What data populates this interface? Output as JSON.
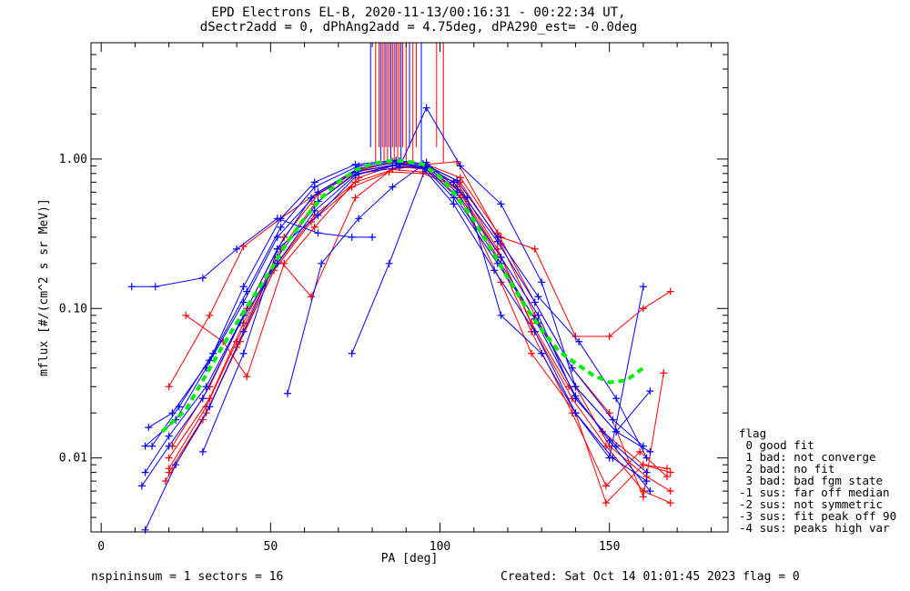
{
  "title_line1": "EPD Electrons EL-B, 2020-11-13/00:16:31 - 00:22:34 UT,",
  "title_line2": "dSectr2add = 0, dPhAng2add = 4.75deg, dPA290_est=  -0.0deg",
  "footer_left": "nspininsum =  1  sectors = 16",
  "footer_right": "Created: Sat Oct 14 01:01:45 2023   flag = 0",
  "legend": {
    "title": "flag",
    "items": [
      " 0 good fit",
      " 1 bad: not converge",
      " 2 bad: no fit",
      " 3 bad: bad fgm state",
      "-1 sus: far off median",
      "-2 sus: not symmetric",
      "-3 sus: fit peak off 90",
      "-4 sus: peaks high var"
    ]
  },
  "colors": {
    "blue": "#0000ff",
    "red": "#ff0000",
    "fit": "#00ee00"
  },
  "chart_data": {
    "type": "line",
    "xlabel": "PA [deg]",
    "ylabel": "mflux [#/(cm^2 s sr MeV)]",
    "xlim": [
      -3,
      185
    ],
    "ylim": [
      0.0032,
      6.0
    ],
    "yscale": "log",
    "xticks": [
      0,
      50,
      100,
      150
    ],
    "xtick_labels": [
      "0",
      "50",
      "100",
      "150"
    ],
    "yticks": [
      0.01,
      0.1,
      1.0
    ],
    "ytick_labels": [
      "0.01",
      "0.10",
      "1.00"
    ],
    "fit_curve": {
      "x": [
        18,
        25,
        30,
        35,
        40,
        45,
        50,
        55,
        60,
        65,
        70,
        75,
        80,
        85,
        90,
        95,
        100,
        105,
        110,
        115,
        120,
        125,
        130,
        135,
        140,
        145,
        150,
        155,
        160
      ],
      "y": [
        0.015,
        0.021,
        0.033,
        0.052,
        0.08,
        0.12,
        0.18,
        0.28,
        0.4,
        0.55,
        0.7,
        0.84,
        0.93,
        0.97,
        0.97,
        0.92,
        0.76,
        0.56,
        0.39,
        0.25,
        0.16,
        0.105,
        0.072,
        0.052,
        0.043,
        0.036,
        0.032,
        0.033,
        0.04
      ]
    },
    "series_blue": [
      {
        "x": [
          13,
          22,
          31,
          42,
          52,
          64,
          76,
          88,
          96,
          104,
          117,
          129,
          140,
          152,
          162
        ],
        "y": [
          0.012,
          0.018,
          0.04,
          0.11,
          0.3,
          0.6,
          0.87,
          0.95,
          0.85,
          0.55,
          0.2,
          0.08,
          0.03,
          0.015,
          0.011
        ]
      },
      {
        "x": [
          13,
          20,
          31,
          42,
          52,
          62,
          75,
          88,
          96,
          105,
          118,
          129,
          140,
          152,
          161
        ],
        "y": [
          0.008,
          0.014,
          0.03,
          0.09,
          0.25,
          0.55,
          0.82,
          0.93,
          0.9,
          0.6,
          0.22,
          0.09,
          0.025,
          0.012,
          0.008
        ]
      },
      {
        "x": [
          14,
          21,
          32,
          43,
          53,
          63,
          76,
          88,
          95,
          104,
          117,
          128,
          139,
          151,
          160
        ],
        "y": [
          0.016,
          0.02,
          0.045,
          0.13,
          0.35,
          0.65,
          0.9,
          0.97,
          0.92,
          0.7,
          0.28,
          0.11,
          0.04,
          0.018,
          0.012
        ]
      },
      {
        "x": [
          12,
          20,
          30,
          41,
          52,
          63,
          75,
          86,
          95,
          104,
          116,
          128,
          140,
          151,
          161
        ],
        "y": [
          0.0065,
          0.012,
          0.025,
          0.08,
          0.2,
          0.45,
          0.78,
          0.9,
          0.87,
          0.5,
          0.18,
          0.07,
          0.02,
          0.01,
          0.007
        ]
      },
      {
        "x": [
          9,
          16,
          30,
          40,
          52,
          64,
          74,
          80
        ],
        "y": [
          0.14,
          0.14,
          0.16,
          0.25,
          0.4,
          0.32,
          0.3,
          0.3
        ]
      },
      {
        "x": [
          30,
          42,
          52,
          64,
          76,
          88,
          96,
          106,
          118,
          130,
          140,
          152,
          162
        ],
        "y": [
          0.011,
          0.05,
          0.25,
          0.42,
          0.8,
          0.88,
          2.2,
          0.9,
          0.5,
          0.15,
          0.03,
          0.015,
          0.028
        ]
      },
      {
        "x": [
          55,
          65,
          76,
          86,
          96,
          108,
          118,
          130,
          140,
          150,
          160
        ],
        "y": [
          0.027,
          0.2,
          0.4,
          0.65,
          0.95,
          0.55,
          0.09,
          0.05,
          0.02,
          0.01,
          0.14
        ]
      },
      {
        "x": [
          74,
          85,
          96
        ],
        "y": [
          0.05,
          0.2,
          0.9
        ]
      },
      {
        "x": [
          13,
          22,
          32,
          42,
          52,
          64,
          76,
          88,
          96,
          104,
          118,
          128,
          140,
          150,
          162
        ],
        "y": [
          0.0033,
          0.009,
          0.022,
          0.07,
          0.22,
          0.52,
          0.83,
          0.92,
          0.88,
          0.58,
          0.2,
          0.085,
          0.026,
          0.013,
          0.006
        ]
      },
      {
        "x": [
          15,
          23,
          33,
          42,
          53,
          63,
          75,
          87,
          95,
          105,
          117,
          129,
          141,
          152,
          161
        ],
        "y": [
          0.012,
          0.022,
          0.05,
          0.14,
          0.4,
          0.7,
          0.92,
          0.98,
          0.93,
          0.72,
          0.3,
          0.12,
          0.06,
          0.025,
          0.01
        ]
      }
    ],
    "series_red": [
      {
        "x": [
          20,
          31,
          41,
          52,
          63,
          75,
          86,
          95,
          105,
          117,
          127,
          138,
          148,
          160,
          168
        ],
        "y": [
          0.008,
          0.02,
          0.06,
          0.2,
          0.42,
          0.7,
          0.85,
          0.82,
          0.7,
          0.25,
          0.08,
          0.03,
          0.015,
          0.009,
          0.008
        ]
      },
      {
        "x": [
          20,
          32,
          42,
          53,
          63,
          74,
          86,
          96,
          106,
          118,
          128,
          139,
          149,
          160,
          168
        ],
        "y": [
          0.01,
          0.025,
          0.08,
          0.25,
          0.5,
          0.78,
          0.9,
          0.88,
          0.6,
          0.22,
          0.07,
          0.025,
          0.012,
          0.006,
          0.005
        ]
      },
      {
        "x": [
          19,
          30,
          40,
          51,
          62,
          74,
          85,
          95,
          105,
          117,
          127,
          139,
          149,
          159,
          167
        ],
        "y": [
          0.007,
          0.018,
          0.055,
          0.18,
          0.38,
          0.65,
          0.82,
          0.8,
          0.65,
          0.22,
          0.07,
          0.02,
          0.0065,
          0.011,
          0.0075
        ]
      },
      {
        "x": [
          21,
          32,
          43,
          54,
          64,
          75,
          86,
          96,
          106,
          118,
          128,
          140,
          150,
          160,
          168
        ],
        "y": [
          0.012,
          0.03,
          0.1,
          0.3,
          0.58,
          0.82,
          0.96,
          0.92,
          0.75,
          0.3,
          0.25,
          0.065,
          0.065,
          0.1,
          0.13
        ]
      },
      {
        "x": [
          25,
          36,
          43,
          54,
          63,
          76,
          86,
          96,
          106,
          118,
          127,
          140,
          149,
          160,
          167
        ],
        "y": [
          0.09,
          0.06,
          0.035,
          0.2,
          0.35,
          0.75,
          0.9,
          0.85,
          0.55,
          0.15,
          0.05,
          0.02,
          0.005,
          0.009,
          0.0085
        ]
      },
      {
        "x": [
          20,
          31,
          40,
          52,
          62,
          75,
          86,
          96,
          106,
          118,
          128,
          140,
          150,
          161,
          168
        ],
        "y": [
          0.0085,
          0.022,
          0.06,
          0.22,
          0.12,
          0.55,
          0.86,
          0.9,
          0.7,
          0.27,
          0.09,
          0.03,
          0.012,
          0.0075,
          0.006
        ]
      },
      {
        "x": [
          20,
          32,
          42,
          53,
          64,
          76,
          87,
          96,
          105,
          117,
          128,
          139,
          150,
          160,
          166
        ],
        "y": [
          0.03,
          0.09,
          0.26,
          0.4,
          0.6,
          0.85,
          0.95,
          0.92,
          0.96,
          0.32,
          0.11,
          0.04,
          0.02,
          0.0055,
          0.037
        ]
      }
    ]
  }
}
